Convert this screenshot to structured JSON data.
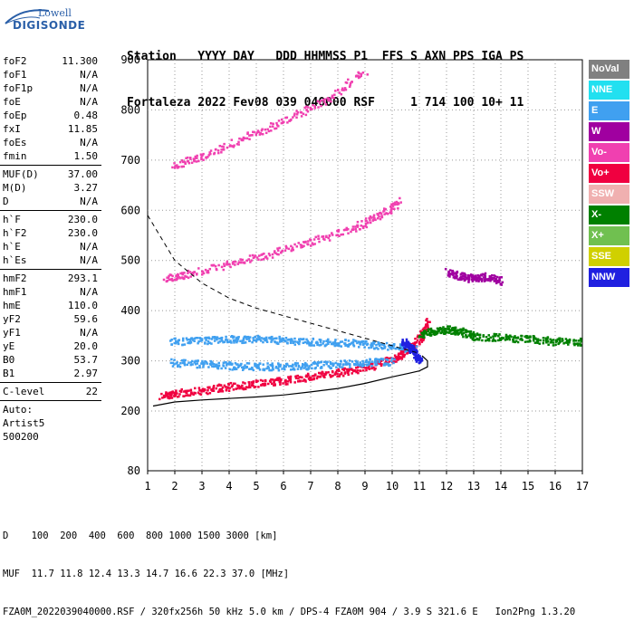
{
  "logo": {
    "line1": "Lowell",
    "line2": "DIGISONDE"
  },
  "header": {
    "line1": "Station   YYYY DAY   DDD HHMMSS P1  FFS S AXN PPS IGA PS",
    "line2": "Fortaleza 2022 Fev08 039 040000 RSF     1 714 100 10+ 11"
  },
  "params": {
    "group1": [
      {
        "label": "foF2",
        "value": "11.300"
      },
      {
        "label": "foF1",
        "value": "N/A"
      },
      {
        "label": "foF1p",
        "value": "N/A"
      },
      {
        "label": "foE",
        "value": "N/A"
      },
      {
        "label": "foEp",
        "value": "0.48"
      },
      {
        "label": "fxI",
        "value": "11.85"
      },
      {
        "label": "foEs",
        "value": "N/A"
      },
      {
        "label": "fmin",
        "value": "1.50"
      }
    ],
    "group2": [
      {
        "label": "MUF(D)",
        "value": "37.00"
      },
      {
        "label": "M(D)",
        "value": "3.27"
      },
      {
        "label": "D",
        "value": "N/A"
      }
    ],
    "group3": [
      {
        "label": "h`F",
        "value": "230.0"
      },
      {
        "label": "h`F2",
        "value": "230.0"
      },
      {
        "label": "h`E",
        "value": "N/A"
      },
      {
        "label": "h`Es",
        "value": "N/A"
      }
    ],
    "group4": [
      {
        "label": "hmF2",
        "value": "293.1"
      },
      {
        "label": "hmF1",
        "value": "N/A"
      },
      {
        "label": "hmE",
        "value": "110.0"
      },
      {
        "label": "yF2",
        "value": "59.6"
      },
      {
        "label": "yF1",
        "value": "N/A"
      },
      {
        "label": "yE",
        "value": "20.0"
      },
      {
        "label": "B0",
        "value": "53.7"
      },
      {
        "label": "B1",
        "value": "2.97"
      }
    ],
    "clevel": {
      "label": "C-level",
      "value": "22"
    },
    "auto": [
      "Auto:",
      "Artist5",
      "500200"
    ]
  },
  "legend": [
    {
      "label": "NoVal",
      "color": "#808080"
    },
    {
      "label": "NNE",
      "color": "#22e0f0"
    },
    {
      "label": "E",
      "color": "#40a0f0"
    },
    {
      "label": "W",
      "color": "#a000a0"
    },
    {
      "label": "Vo-",
      "color": "#f040b0"
    },
    {
      "label": "Vo+",
      "color": "#f00040"
    },
    {
      "label": "SSW",
      "color": "#f0b0b0"
    },
    {
      "label": "X-",
      "color": "#008000"
    },
    {
      "label": "X+",
      "color": "#70c050"
    },
    {
      "label": "SSE",
      "color": "#d0d000"
    },
    {
      "label": "NNW",
      "color": "#2020e0"
    }
  ],
  "footer": {
    "line1": "D    100  200  400  600  800 1000 1500 3000 [km]",
    "line2": "MUF  11.7 11.8 12.4 13.3 14.7 16.6 22.3 37.0 [MHz]",
    "line3": "FZA0M_2022039040000.RSF / 320fx256h 50 kHz 5.0 km / DPS-4 FZA0M 904 / 3.9 S 321.6 E   Ion2Png 1.3.20"
  },
  "chart_data": {
    "type": "scatter",
    "xlim": [
      1,
      17
    ],
    "ylim": [
      80,
      900
    ],
    "x_ticks": [
      1,
      2,
      3,
      4,
      5,
      6,
      7,
      8,
      9,
      10,
      11,
      12,
      13,
      14,
      15,
      16,
      17
    ],
    "y_ticks": [
      80,
      200,
      300,
      400,
      500,
      600,
      700,
      800,
      900
    ],
    "grid": true,
    "series": [
      {
        "color": "#f00040",
        "x": [
          1.5,
          2,
          3,
          4,
          5,
          6,
          7,
          8,
          9,
          10,
          10.5,
          11,
          11.3
        ],
        "y": [
          232,
          236,
          243,
          250,
          256,
          262,
          270,
          278,
          288,
          305,
          320,
          345,
          380
        ]
      },
      {
        "color": "#f040b0",
        "x": [
          1.6,
          2.5,
          4,
          5.5,
          7,
          8.5,
          9.5,
          10.3
        ],
        "y": [
          465,
          475,
          495,
          515,
          540,
          565,
          590,
          620
        ]
      },
      {
        "color": "#f040b0",
        "x": [
          1.9,
          3,
          4.5,
          6,
          7.5,
          9
        ],
        "y": [
          690,
          710,
          745,
          780,
          820,
          880
        ]
      },
      {
        "color": "#40a0f0",
        "x": [
          1.8,
          3,
          4,
          5,
          6,
          7,
          8,
          9,
          10,
          10.8
        ],
        "y": [
          340,
          342,
          345,
          345,
          343,
          340,
          338,
          335,
          330,
          325
        ]
      },
      {
        "color": "#40a0f0",
        "x": [
          1.8,
          3,
          4,
          5,
          6,
          7,
          8,
          9,
          10
        ],
        "y": [
          298,
          295,
          292,
          290,
          290,
          292,
          295,
          298,
          300
        ]
      },
      {
        "color": "#008000",
        "x": [
          11,
          11.5,
          12,
          12.5,
          13,
          14,
          15,
          16,
          17
        ],
        "y": [
          355,
          360,
          365,
          360,
          350,
          348,
          345,
          340,
          340
        ]
      },
      {
        "color": "#a000a0",
        "x": [
          12,
          12.5,
          13,
          13.5,
          14
        ],
        "y": [
          480,
          470,
          465,
          470,
          460
        ]
      },
      {
        "color": "#2020e0",
        "x": [
          10.4,
          10.6,
          10.8,
          11
        ],
        "y": [
          340,
          330,
          320,
          300
        ]
      }
    ],
    "profile_curve": {
      "x": [
        1.2,
        2,
        3,
        4,
        5,
        6,
        7,
        8,
        9,
        10,
        10.6,
        11,
        11.3,
        11.3,
        11.1
      ],
      "y": [
        210,
        218,
        222,
        225,
        228,
        232,
        238,
        245,
        255,
        268,
        275,
        280,
        288,
        300,
        310
      ]
    },
    "muf_curve": {
      "x": [
        1,
        1.5,
        2,
        3,
        4,
        5,
        6,
        7,
        8,
        9,
        10,
        11
      ],
      "y": [
        590,
        545,
        500,
        455,
        425,
        405,
        390,
        375,
        360,
        345,
        330,
        315
      ]
    }
  }
}
